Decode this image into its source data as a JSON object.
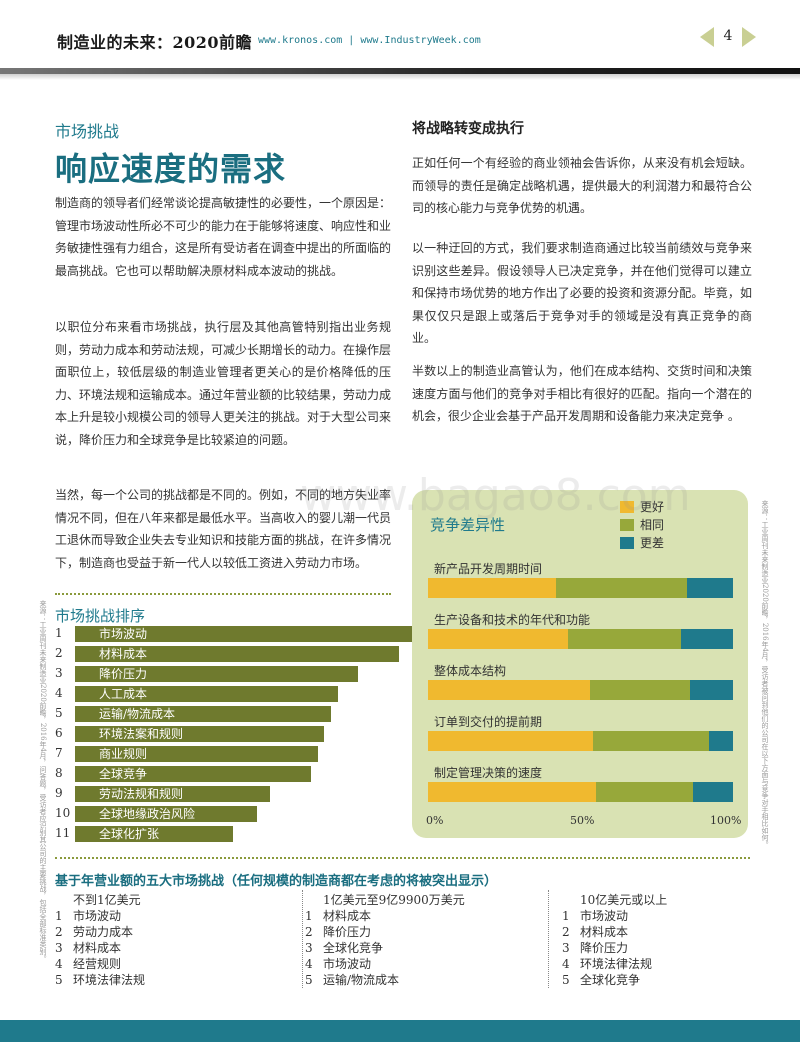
{
  "header": {
    "title": "制造业的未来：2020前瞻",
    "url": "www.kronos.com | www.IndustryWeek.com",
    "page_number": "4"
  },
  "left": {
    "kicker": "市场挑战",
    "headline": "响应速度的需求",
    "para1": "制造商的领导者们经常谈论提高敏捷性的必要性，一个原因是：管理市场波动性所必不可少的能力在于能够将速度、响应性和业务敏捷性强有力组合，这是所有受访者在调查中提出的所面临的最高挑战。它也可以帮助解决原材料成本波动的挑战。",
    "para2": "以职位分布来看市场挑战，执行层及其他高管特别指出业务规则，劳动力成本和劳动法规，可减少长期增长的动力。在操作层面职位上，较低层级的制造业管理者更关心的是价格降低的压力、环境法规和运输成本。通过年营业额的比较结果，劳动力成本上升是较小规模公司的领导人更关注的挑战。对于大型公司来说，降价压力和全球竞争是比较紧迫的问题。",
    "para3": "当然，每一个公司的挑战都是不同的。例如，不同的地方失业率情况不同，但在八年来都是最低水平。当高收入的婴儿潮一代员工退休而导致企业失去专业知识和技能方面的挑战，在许多情况下，制造商也受益于新一代人以较低工资进入劳动力市场。"
  },
  "ranking": {
    "title": "市场挑战排序",
    "items": [
      {
        "rank": "1",
        "label": "市场波动",
        "value": 100
      },
      {
        "rank": "2",
        "label": "材料成本",
        "value": 96
      },
      {
        "rank": "3",
        "label": "降价压力",
        "value": 84
      },
      {
        "rank": "4",
        "label": "人工成本",
        "value": 78
      },
      {
        "rank": "5",
        "label": "运输/物流成本",
        "value": 76
      },
      {
        "rank": "6",
        "label": "环境法案和规则",
        "value": 74
      },
      {
        "rank": "7",
        "label": "商业规则",
        "value": 72
      },
      {
        "rank": "8",
        "label": "全球竞争",
        "value": 70
      },
      {
        "rank": "9",
        "label": "劳动法规和规则",
        "value": 58
      },
      {
        "rank": "10",
        "label": "全球地缘政治风险",
        "value": 54
      },
      {
        "rank": "11",
        "label": "全球化扩张",
        "value": 47
      }
    ]
  },
  "right": {
    "heading": "将战略转变成执行",
    "para1": "正如任何一个有经验的商业领袖会告诉你，从来没有机会短缺。而领导的责任是确定战略机遇，提供最大的利润潜力和最符合公司的核心能力与竞争优势的机遇。",
    "para2": "以一种迂回的方式，我们要求制造商通过比较当前绩效与竞争来识别这些差异。假设领导人已决定竞争，并在他们觉得可以建立和保持市场优势的地方作出了必要的投资和资源分配。毕竟，如果仅仅只是跟上或落后于竞争对手的领域是没有真正竞争的商业。",
    "para3": "半数以上的制造业高管认为，他们在成本结构、交货时间和决策速度方面与他们的竞争对手相比有很好的匹配。指向一个潜在的机会，很少企业会基于产品开发周期和设备能力来决定竞争 。"
  },
  "chart_data": {
    "type": "bar",
    "orientation": "horizontal-stacked-100",
    "title": "竞争差异性",
    "categories": [
      "新产品开发周期时间",
      "生产设备和技术的年代和功能",
      "整体成本结构",
      "订单到交付的提前期",
      "制定管理决策的速度"
    ],
    "series": [
      {
        "name": "更好",
        "color": "#f0b92f",
        "values": [
          42,
          46,
          53,
          54,
          55
        ]
      },
      {
        "name": "相同",
        "color": "#97a83a",
        "values": [
          43,
          37,
          33,
          38,
          32
        ]
      },
      {
        "name": "更差",
        "color": "#1f7a8c",
        "values": [
          15,
          17,
          14,
          8,
          13
        ]
      }
    ],
    "xticks": [
      "0%",
      "50%",
      "100%"
    ],
    "xlim": [
      0,
      100
    ]
  },
  "bottom": {
    "title": "基于年营业额的五大市场挑战（任何规模的制造商都在考虑的将被突出显示）",
    "columns": [
      {
        "head": "不到1亿美元",
        "items": [
          {
            "n": "1",
            "t": "市场波动"
          },
          {
            "n": "2",
            "t": "劳动力成本"
          },
          {
            "n": "3",
            "t": "材料成本"
          },
          {
            "n": "4",
            "t": "经营规则"
          },
          {
            "n": "5",
            "t": "环境法律法规"
          }
        ]
      },
      {
        "head": "1亿美元至9亿9900万美元",
        "items": [
          {
            "n": "1",
            "t": "材料成本"
          },
          {
            "n": "2",
            "t": "降价压力"
          },
          {
            "n": "3",
            "t": "全球化竞争"
          },
          {
            "n": "4",
            "t": "市场波动"
          },
          {
            "n": "5",
            "t": "运输/物流成本"
          }
        ]
      },
      {
        "head": "10亿美元或以上",
        "items": [
          {
            "n": "1",
            "t": "市场波动"
          },
          {
            "n": "2",
            "t": "材料成本"
          },
          {
            "n": "3",
            "t": "降价压力"
          },
          {
            "n": "4",
            "t": "环境法律法规"
          },
          {
            "n": "5",
            "t": "全球化竞争"
          }
        ]
      }
    ]
  },
  "watermark": "www.bagao8.com",
  "side_notes": {
    "left": "来源：工业周刊未来制造业2020前瞻，2016年4月，问答题，受访者应识别其公司的主要挑战，包括全部标准类别。",
    "right": "来源：工业周刊未来制造业2020前瞻，2016年4月，受访者被问到他们的公司在以下方面与竞争对手相比如何。"
  },
  "colors": {
    "teal": "#1f7a8c",
    "olive": "#6f7a2e",
    "panel": "#d9e2b3"
  }
}
